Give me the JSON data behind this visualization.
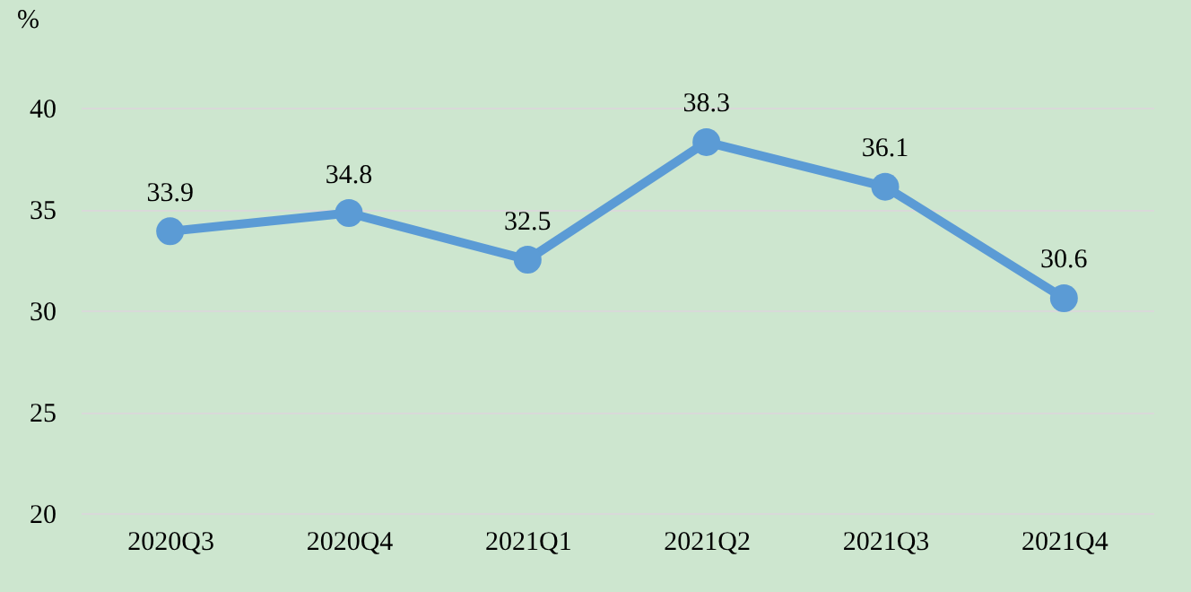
{
  "chart_data": {
    "type": "line",
    "ylabel": "%",
    "categories": [
      "2020Q3",
      "2020Q4",
      "2021Q1",
      "2021Q2",
      "2021Q3",
      "2021Q4"
    ],
    "series": [
      {
        "color": "#5b9bd5",
        "values": [
          33.9,
          34.8,
          32.5,
          38.3,
          36.1,
          30.6
        ]
      }
    ],
    "ylim": [
      20,
      40
    ],
    "yticks": [
      20,
      25,
      30,
      35,
      40
    ],
    "grid": "y",
    "marker": "circle",
    "data_labels": true,
    "legend": false
  }
}
